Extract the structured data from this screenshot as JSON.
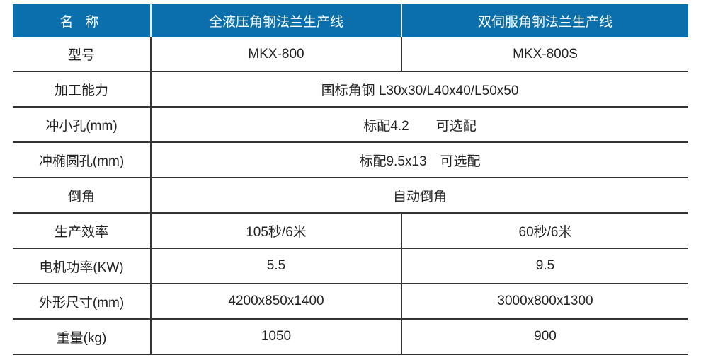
{
  "header": {
    "name": "名 称",
    "col1": "全液压角钢法兰生产线",
    "col2": "双伺服角钢法兰生产线"
  },
  "rows": [
    {
      "label": "型号",
      "col1": "MKX-800",
      "col2": "MKX-800S"
    },
    {
      "label": "加工能力",
      "merged": "国标角钢 L30x30/L40x40/L50x50"
    },
    {
      "label": "冲小孔(mm)",
      "merged": "标配4.2　　可选配"
    },
    {
      "label": "冲椭圆孔(mm)",
      "merged": "标配9.5x13　可选配"
    },
    {
      "label": "倒角",
      "merged": "自动倒角"
    },
    {
      "label": "生产效率",
      "col1": "105秒/6米",
      "col2": "60秒/6米"
    },
    {
      "label": "电机功率(KW)",
      "col1": "5.5",
      "col2": "9.5"
    },
    {
      "label": "外形尺寸(mm)",
      "col1": "4200x850x1400",
      "col2": "3000x800x1300"
    },
    {
      "label": "重量(kg)",
      "col1": "1050",
      "col2": "900"
    }
  ],
  "colors": {
    "header_bg": "#0a6fab",
    "header_text": "#ffffff",
    "border": "#333333"
  }
}
